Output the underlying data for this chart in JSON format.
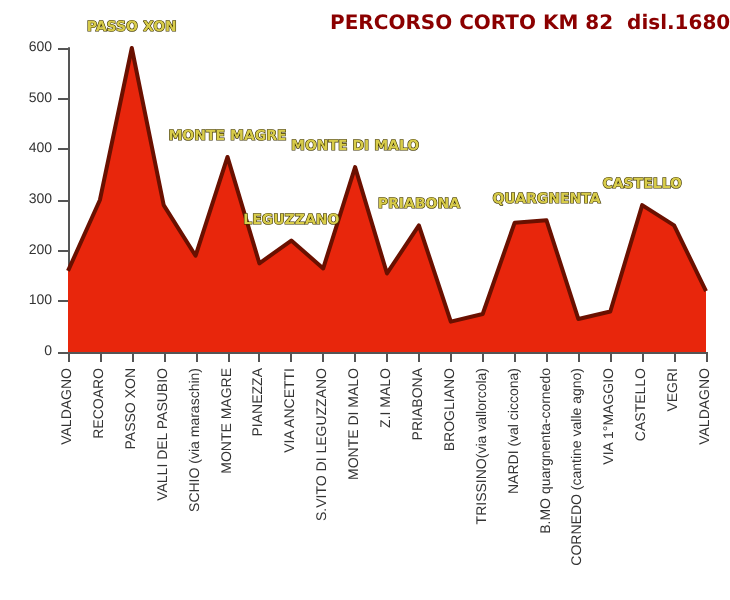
{
  "chart_data": {
    "type": "area",
    "title": "PERCORSO CORTO KM 82  disl.1680",
    "categories": [
      "VALDAGNO",
      "RECOARO",
      "PASSO XON",
      "VALLI DEL PASUBIO",
      "SCHIO (via maraschin)",
      "MONTE MAGRE",
      "PIANEZZA",
      "VIA ANCETTI",
      "S.VITO DI LEGUZZANO",
      "MONTE DI MALO",
      "Z.I MALO",
      "PRIABONA",
      "BROGLIANO",
      "TRISSINO(via vallorcola)",
      "NARDI (val ciccona)",
      "B.MO quargnenta-cornedo",
      "CORNEDO (cantine valle agno)",
      "VIA 1°MAGGIO",
      "CASTELLO",
      "VEGRI",
      "VALDAGNO"
    ],
    "values": [
      160,
      300,
      600,
      290,
      190,
      385,
      175,
      220,
      165,
      365,
      155,
      250,
      60,
      75,
      255,
      260,
      65,
      80,
      290,
      250,
      120
    ],
    "color": "#e8260c",
    "ylim": [
      0,
      600
    ],
    "yticks": [
      0,
      100,
      200,
      300,
      400,
      500,
      600
    ],
    "grid": false,
    "annotations": [
      {
        "text": "PASSO XON",
        "x": "PASSO XON",
        "y": 600
      },
      {
        "text": "MONTE MAGRE",
        "x": "MONTE MAGRE",
        "y": 385
      },
      {
        "text": "LEGUZZANO",
        "x": "VIA ANCETTI",
        "y": 220
      },
      {
        "text": "MONTE DI MALO",
        "x": "MONTE DI MALO",
        "y": 365
      },
      {
        "text": "PRIABONA",
        "x": "PRIABONA",
        "y": 250
      },
      {
        "text": "QUARGNENTA",
        "x": "B.MO quargnenta-cornedo",
        "y": 260
      },
      {
        "text": "CASTELLO",
        "x": "CASTELLO",
        "y": 290
      }
    ]
  }
}
